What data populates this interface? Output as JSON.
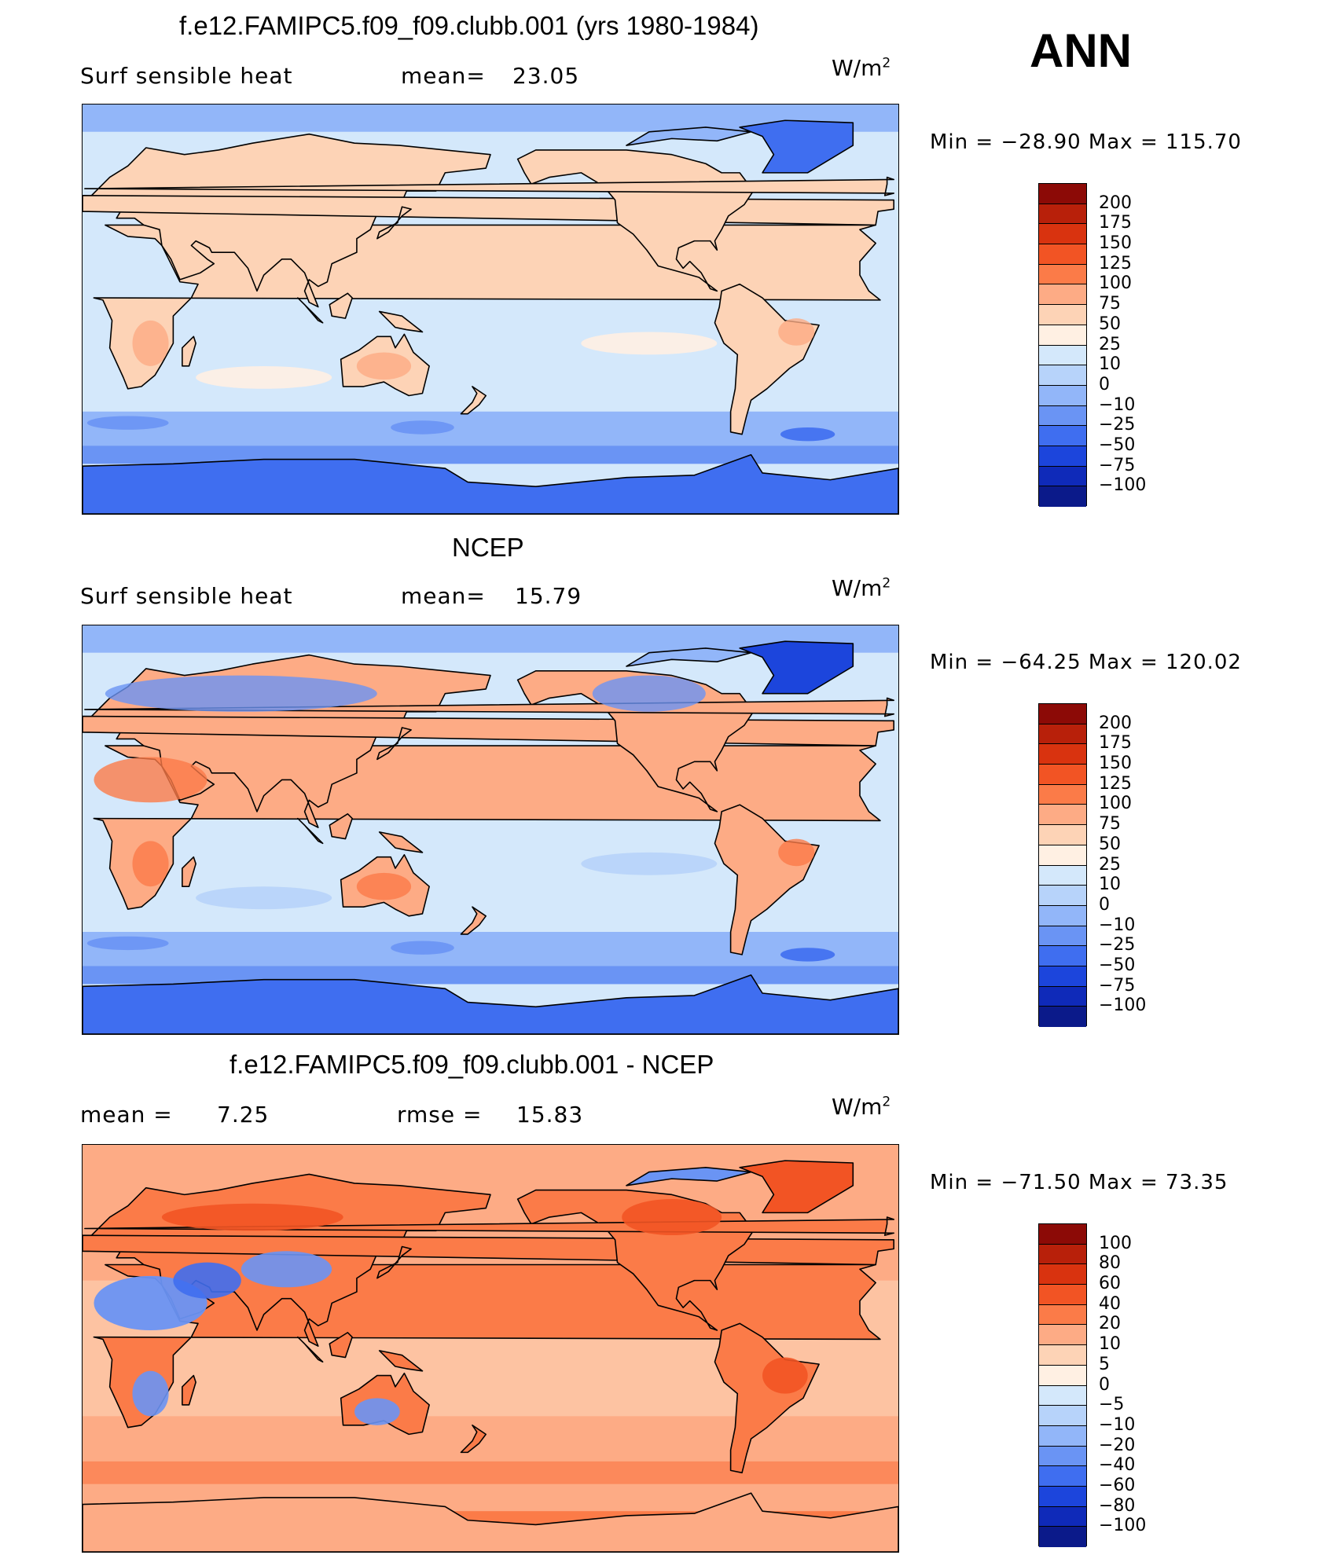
{
  "season": "ANN",
  "coast_color": "#000000",
  "panels": [
    {
      "id": "model",
      "title": "f.e12.FAMIPC5.f09_f09.clubb.001 (yrs 1980-1984)",
      "variable": "Surf sensible heat",
      "left_label": "mean=",
      "left_value": "23.05",
      "right_label": "",
      "right_value": "",
      "units": "W/m",
      "units_exp": "2",
      "min_text": "Min = −28.90 Max = 115.70",
      "min": -28.9,
      "max": 115.7,
      "background": "#d4e8fb",
      "colorbar": {
        "levels": [
          "200",
          "175",
          "150",
          "125",
          "100",
          "75",
          "50",
          "25",
          "10",
          "0",
          "−10",
          "−25",
          "−50",
          "−75",
          "−100"
        ],
        "colors": [
          "#8c0a06",
          "#b8200a",
          "#d9330f",
          "#f25424",
          "#fb7b48",
          "#fdab85",
          "#fdd3b6",
          "#fff0e3",
          "#d4e8fb",
          "#b7d3fa",
          "#92b6f9",
          "#6a94f4",
          "#3f6ef0",
          "#1c45dc",
          "#0f2ab9",
          "#0b1a8a"
        ]
      },
      "regions": {
        "land_warm": "#fdd3b6",
        "land_hot": "#fdab85",
        "ocean_warm": "#fff0e3",
        "cold_1": "#92b6f9",
        "cold_2": "#6a94f4",
        "cold_3": "#3f6ef0",
        "antarctic": "#3f6ef0",
        "greenland": "#3f6ef0"
      }
    },
    {
      "id": "obs",
      "title": "NCEP",
      "variable": "Surf sensible heat",
      "left_label": "mean=",
      "left_value": "15.79",
      "right_label": "",
      "right_value": "",
      "units": "W/m",
      "units_exp": "2",
      "min_text": "Min = −64.25 Max = 120.02",
      "min": -64.25,
      "max": 120.02,
      "background": "#d4e8fb",
      "colorbar": {
        "levels": [
          "200",
          "175",
          "150",
          "125",
          "100",
          "75",
          "50",
          "25",
          "10",
          "0",
          "−10",
          "−25",
          "−50",
          "−75",
          "−100"
        ],
        "colors": [
          "#8c0a06",
          "#b8200a",
          "#d9330f",
          "#f25424",
          "#fb7b48",
          "#fdab85",
          "#fdd3b6",
          "#fff0e3",
          "#d4e8fb",
          "#b7d3fa",
          "#92b6f9",
          "#6a94f4",
          "#3f6ef0",
          "#1c45dc",
          "#0f2ab9",
          "#0b1a8a"
        ]
      },
      "regions": {
        "land_warm": "#fdab85",
        "land_hot": "#fb7b48",
        "ocean_warm": "#b7d3fa",
        "cold_1": "#92b6f9",
        "cold_2": "#6a94f4",
        "cold_3": "#3f6ef0",
        "antarctic": "#3f6ef0",
        "greenland": "#1c45dc"
      }
    },
    {
      "id": "diff",
      "title": "f.e12.FAMIPC5.f09_f09.clubb.001 - NCEP",
      "variable": "mean =",
      "left_label": "",
      "left_value": "7.25",
      "right_label": "rmse =",
      "right_value": "15.83",
      "units": "W/m",
      "units_exp": "2",
      "min_text": "Min = −71.50 Max = 73.35",
      "min": -71.5,
      "max": 73.35,
      "background": "#fdab85",
      "colorbar": {
        "levels": [
          "100",
          "80",
          "60",
          "40",
          "20",
          "10",
          "5",
          "0",
          "−5",
          "−10",
          "−20",
          "−40",
          "−60",
          "−80",
          "−100"
        ],
        "colors": [
          "#8c0a06",
          "#b8200a",
          "#d9330f",
          "#f25424",
          "#fb7b48",
          "#fdab85",
          "#fdd3b6",
          "#fff0e3",
          "#d4e8fb",
          "#b7d3fa",
          "#92b6f9",
          "#6a94f4",
          "#3f6ef0",
          "#1c45dc",
          "#0f2ab9",
          "#0b1a8a"
        ]
      },
      "regions": {
        "land_warm": "#fb7b48",
        "land_hot": "#f25424",
        "ocean_warm": "#fdd3b6",
        "cold_1": "#6a94f4",
        "cold_2": "#3f6ef0",
        "cold_3": "#1c45dc",
        "antarctic": "#fdab85",
        "greenland": "#f25424"
      }
    }
  ]
}
